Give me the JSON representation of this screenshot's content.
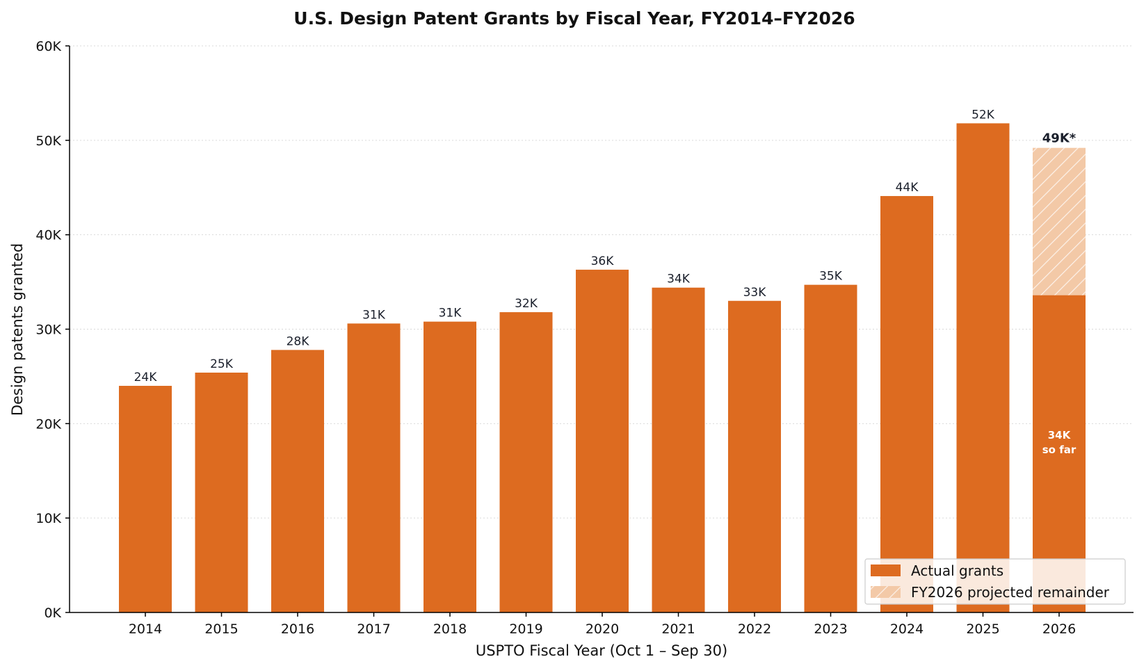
{
  "chart_data": {
    "type": "bar",
    "title": "U.S. Design Patent Grants by Fiscal Year, FY2014–FY2026",
    "xlabel": "USPTO Fiscal Year (Oct 1 – Sep 30)",
    "ylabel": "Design patents granted",
    "ylim": [
      0,
      60000
    ],
    "yticks": [
      0,
      10000,
      20000,
      30000,
      40000,
      50000,
      60000
    ],
    "ytick_labels": [
      "0K",
      "10K",
      "20K",
      "30K",
      "40K",
      "50K",
      "60K"
    ],
    "grid": "horizontal, dotted",
    "legend_position": "bottom-right",
    "categories": [
      "2014",
      "2015",
      "2016",
      "2017",
      "2018",
      "2019",
      "2020",
      "2021",
      "2022",
      "2023",
      "2024",
      "2025",
      "2026"
    ],
    "series": [
      {
        "name": "Actual grants",
        "color": "#dd6b20",
        "values": [
          24000,
          25400,
          27800,
          30600,
          30800,
          31800,
          36300,
          34400,
          33000,
          34700,
          44100,
          51800,
          33600
        ],
        "labels": [
          "24K",
          "25K",
          "28K",
          "31K",
          "31K",
          "32K",
          "36K",
          "34K",
          "33K",
          "35K",
          "44K",
          "52K",
          ""
        ]
      },
      {
        "name": "FY2026 projected remainder",
        "color": "#f3c9a7",
        "pattern": "diagonal-hatch",
        "values": [
          0,
          0,
          0,
          0,
          0,
          0,
          0,
          0,
          0,
          0,
          0,
          0,
          15600
        ],
        "labels": [
          "",
          "",
          "",
          "",
          "",
          "",
          "",
          "",
          "",
          "",
          "",
          "",
          "49K*"
        ]
      }
    ],
    "annotations": [
      {
        "category": "2026",
        "line1": "34K",
        "line2": "so far"
      }
    ]
  }
}
